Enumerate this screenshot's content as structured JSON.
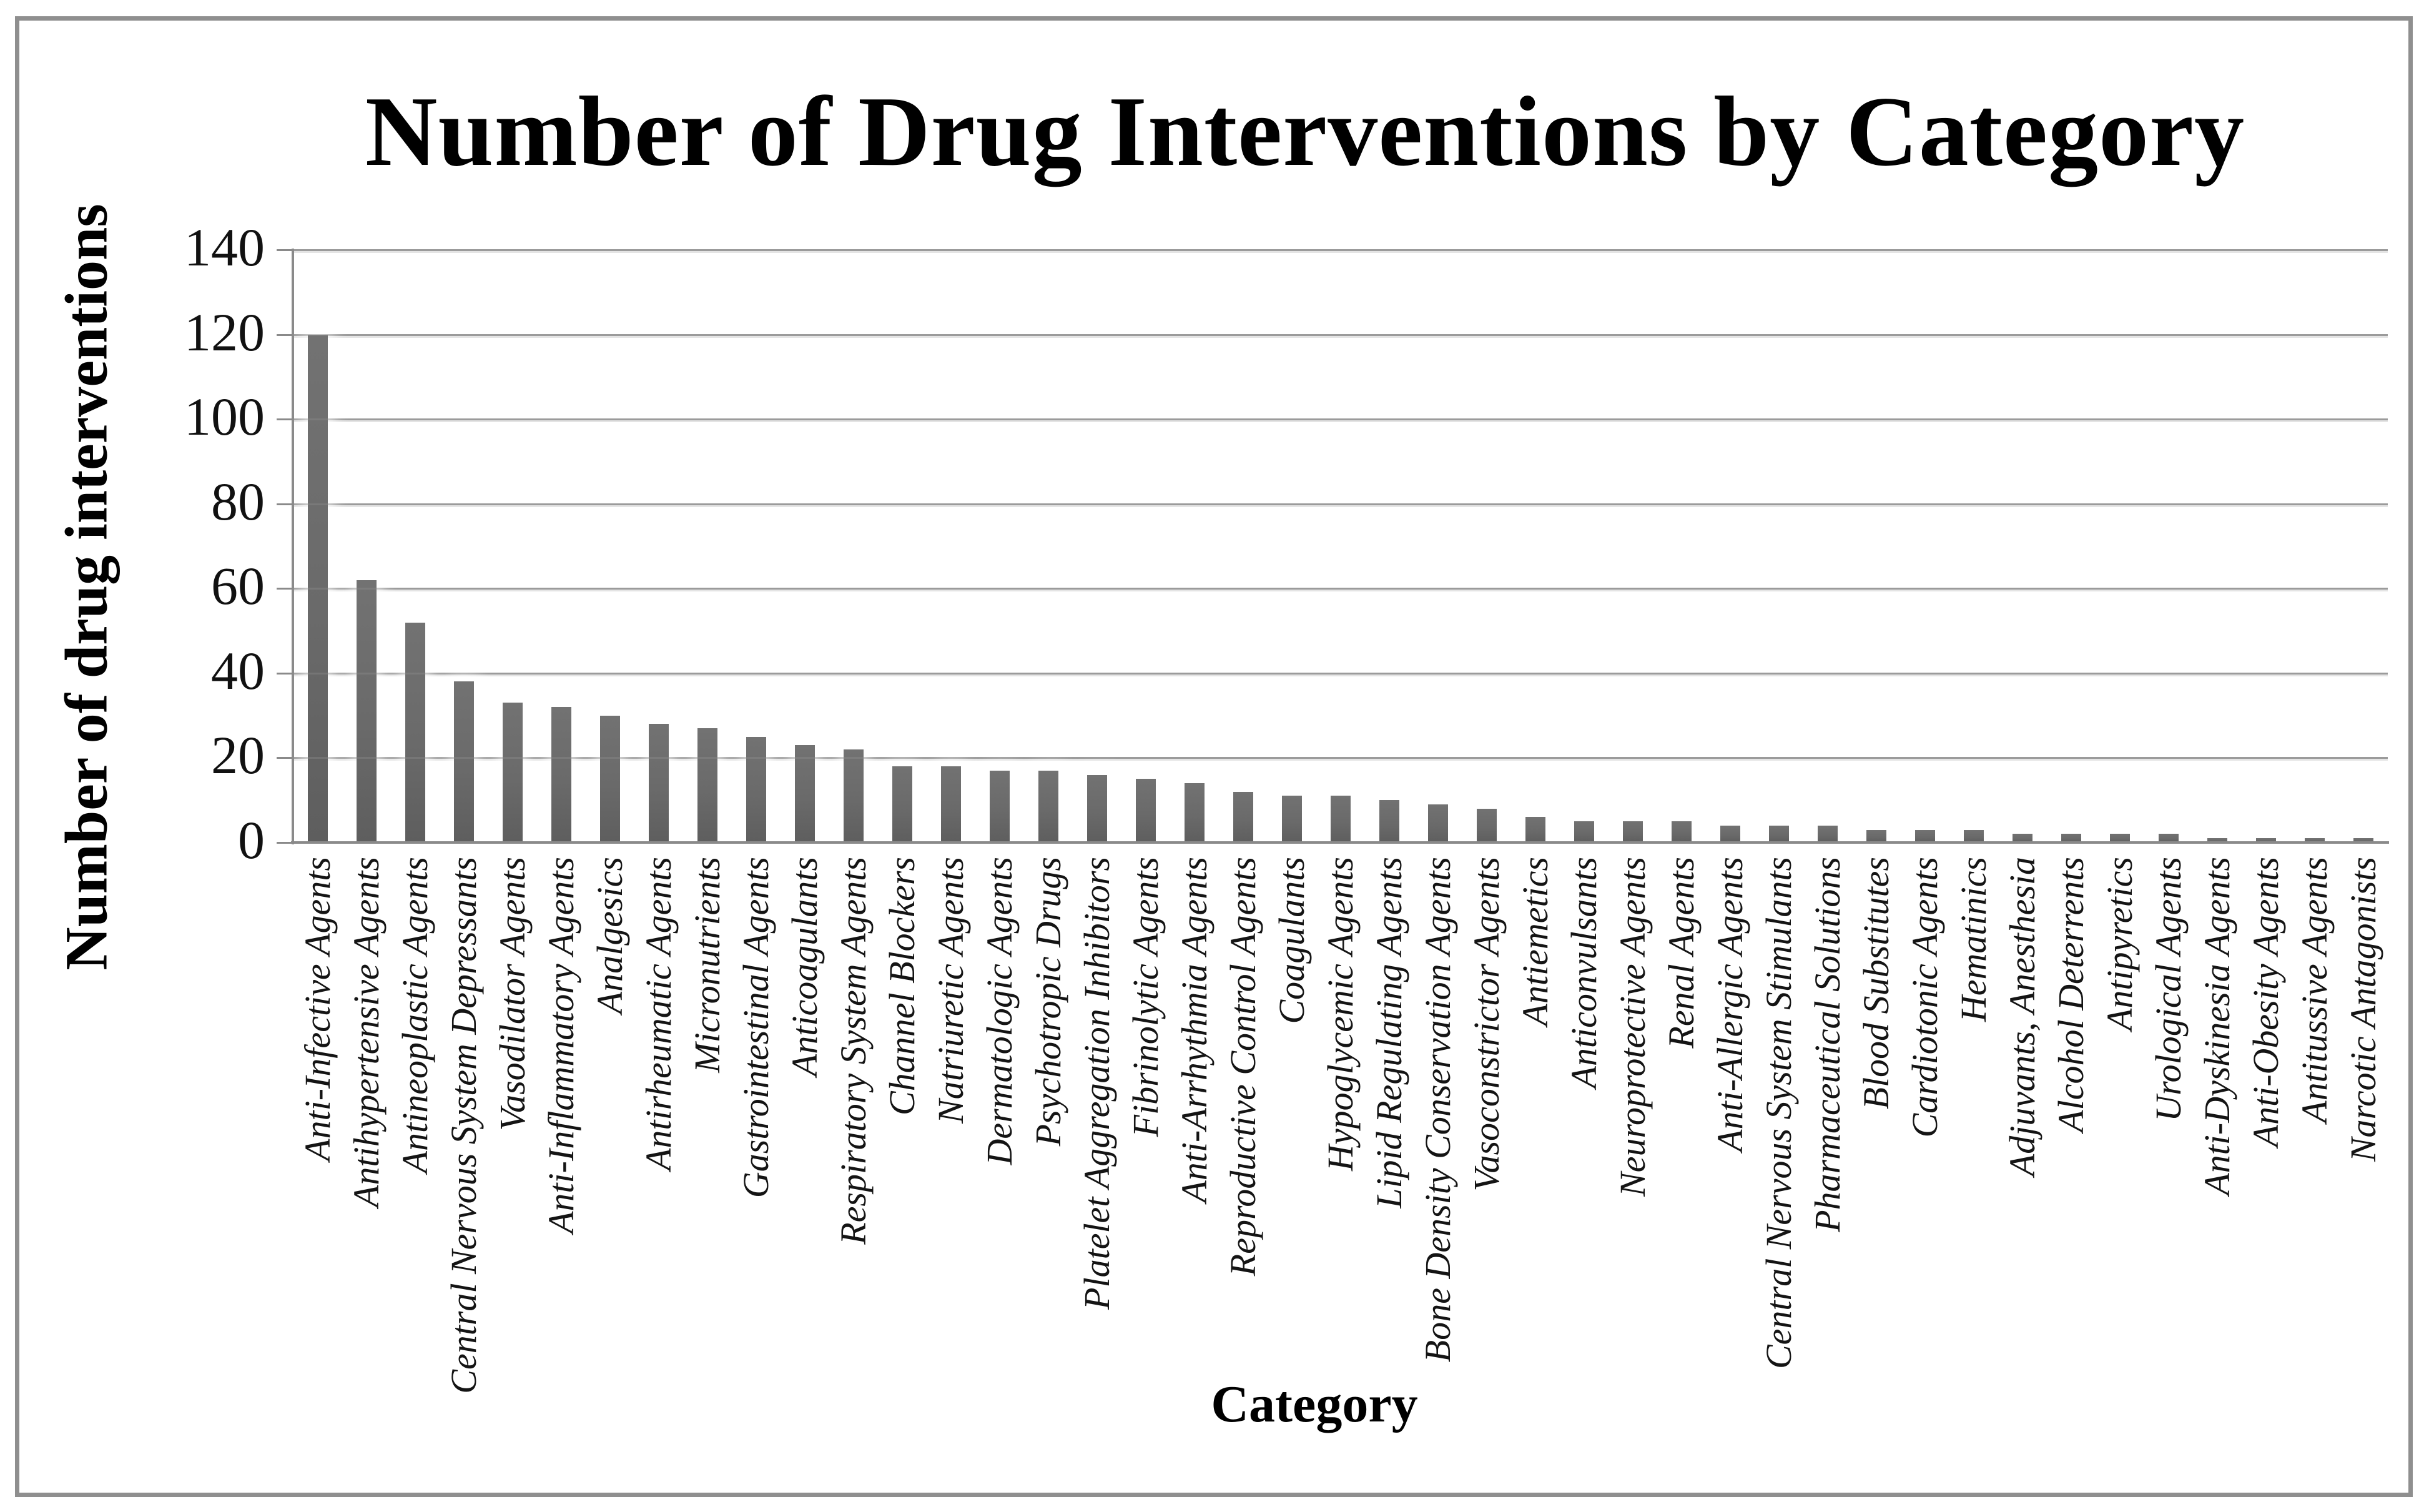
{
  "chart_data": {
    "type": "bar",
    "title": "Number of Drug Interventions by Category",
    "xlabel": "Category",
    "ylabel": "Number of drug interventions",
    "ylim": [
      0,
      140
    ],
    "ytick_step": 20,
    "ytick_labels": [
      "0",
      "20",
      "40",
      "60",
      "80",
      "100",
      "120",
      "140"
    ],
    "grid": "horizontal",
    "legend": "none",
    "bar_color": "#696969",
    "gridline_color": "#9b9b9b",
    "axis_color": "#8a8a8a",
    "categories": [
      "Anti-Infective Agents",
      "Antihypertensive Agents",
      "Antineoplastic Agents",
      "Central Nervous System Depressants",
      "Vasodilator Agents",
      "Anti-Inflammatory Agents",
      "Analgesics",
      "Antirheumatic Agents",
      "Micronutrients",
      "Gastrointestinal Agents",
      "Anticoagulants",
      "Respiratory System Agents",
      "Channel Blockers",
      "Natriuretic Agents",
      "Dermatologic Agents",
      "Psychotropic Drugs",
      "Platelet Aggregation Inhibitors",
      "Fibrinolytic Agents",
      "Anti-Arrhythmia Agents",
      "Reproductive Control Agents",
      "Coagulants",
      "Hypoglycemic Agents",
      "Lipid Regulating Agents",
      "Bone Density Conservation Agents",
      "Vasoconstrictor Agents",
      "Antiemetics",
      "Anticonvulsants",
      "Neuroprotective Agents",
      "Renal Agents",
      "Anti-Allergic Agents",
      "Central Nervous System Stimulants",
      "Pharmaceutical Solutions",
      "Blood Substitutes",
      "Cardiotonic Agents",
      "Hematinics",
      "Adjuvants, Anesthesia",
      "Alcohol Deterrents",
      "Antipyretics",
      "Urological Agents",
      "Anti-Dyskinesia Agents",
      "Anti-Obesity Agents",
      "Antitussive Agents",
      "Narcotic Antagonists"
    ],
    "values": [
      120,
      62,
      52,
      38,
      33,
      32,
      30,
      28,
      27,
      25,
      23,
      22,
      18,
      18,
      17,
      17,
      16,
      15,
      14,
      12,
      11,
      11,
      10,
      9,
      8,
      6,
      5,
      5,
      5,
      4,
      4,
      4,
      3,
      3,
      3,
      2,
      2,
      2,
      2,
      1,
      1,
      1,
      1
    ]
  }
}
